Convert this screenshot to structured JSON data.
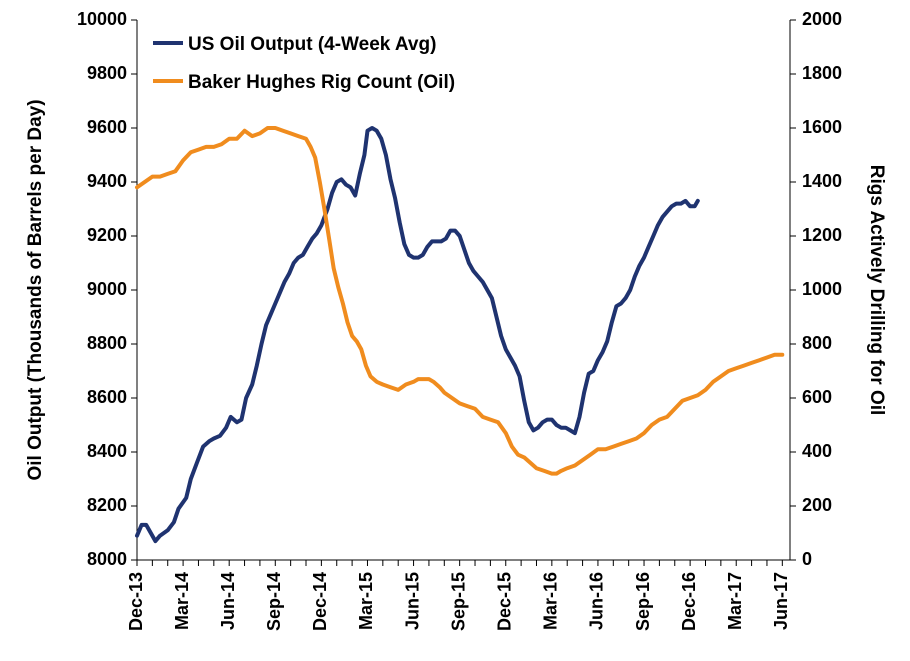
{
  "chart_data": {
    "type": "line",
    "title": "",
    "xlabel": "",
    "ylabel_left": "Oil Output (Thousands of Barrels per Day)",
    "ylabel_right": "Rigs Actively Drilling for Oil",
    "x_tick_labels": [
      "Dec-13",
      "Mar-14",
      "Jun-14",
      "Sep-14",
      "Dec-14",
      "Mar-15",
      "Jun-15",
      "Sep-15",
      "Dec-15",
      "Mar-16",
      "Jun-16",
      "Sep-16",
      "Dec-16",
      "Mar-17",
      "Jun-17"
    ],
    "x_range_months": [
      0,
      42.5
    ],
    "y_left": {
      "min": 8000,
      "max": 10000,
      "step": 200,
      "ticks": [
        8000,
        8200,
        8400,
        8600,
        8800,
        9000,
        9200,
        9400,
        9600,
        9800,
        10000
      ]
    },
    "y_right": {
      "min": 0,
      "max": 2000,
      "step": 200,
      "ticks": [
        0,
        200,
        400,
        600,
        800,
        1000,
        1200,
        1400,
        1600,
        1800,
        2000
      ]
    },
    "legend_position": "top-left",
    "grid": false,
    "series": [
      {
        "name": "US Oil Output (4-Week Avg)",
        "axis": "left",
        "color": "#1f3370",
        "points": [
          [
            0.0,
            8090
          ],
          [
            0.3,
            8130
          ],
          [
            0.6,
            8130
          ],
          [
            0.9,
            8100
          ],
          [
            1.2,
            8070
          ],
          [
            1.5,
            8090
          ],
          [
            2.0,
            8110
          ],
          [
            2.4,
            8140
          ],
          [
            2.7,
            8190
          ],
          [
            3.2,
            8230
          ],
          [
            3.5,
            8300
          ],
          [
            3.9,
            8360
          ],
          [
            4.3,
            8420
          ],
          [
            4.7,
            8440
          ],
          [
            5.0,
            8450
          ],
          [
            5.4,
            8460
          ],
          [
            5.8,
            8490
          ],
          [
            6.1,
            8530
          ],
          [
            6.5,
            8510
          ],
          [
            6.8,
            8520
          ],
          [
            7.1,
            8600
          ],
          [
            7.5,
            8650
          ],
          [
            7.8,
            8720
          ],
          [
            8.1,
            8800
          ],
          [
            8.4,
            8870
          ],
          [
            8.7,
            8910
          ],
          [
            9.0,
            8950
          ],
          [
            9.3,
            8990
          ],
          [
            9.6,
            9030
          ],
          [
            9.9,
            9060
          ],
          [
            10.2,
            9100
          ],
          [
            10.5,
            9120
          ],
          [
            10.8,
            9130
          ],
          [
            11.1,
            9160
          ],
          [
            11.4,
            9190
          ],
          [
            11.7,
            9210
          ],
          [
            12.0,
            9240
          ],
          [
            12.4,
            9300
          ],
          [
            12.7,
            9360
          ],
          [
            13.0,
            9400
          ],
          [
            13.3,
            9410
          ],
          [
            13.6,
            9390
          ],
          [
            13.9,
            9380
          ],
          [
            14.2,
            9350
          ],
          [
            14.5,
            9430
          ],
          [
            14.8,
            9500
          ],
          [
            15.0,
            9590
          ],
          [
            15.3,
            9600
          ],
          [
            15.6,
            9590
          ],
          [
            15.9,
            9560
          ],
          [
            16.2,
            9500
          ],
          [
            16.5,
            9410
          ],
          [
            16.8,
            9340
          ],
          [
            17.1,
            9250
          ],
          [
            17.4,
            9170
          ],
          [
            17.7,
            9130
          ],
          [
            18.0,
            9120
          ],
          [
            18.3,
            9120
          ],
          [
            18.6,
            9130
          ],
          [
            18.9,
            9160
          ],
          [
            19.2,
            9180
          ],
          [
            19.5,
            9180
          ],
          [
            19.8,
            9180
          ],
          [
            20.1,
            9190
          ],
          [
            20.4,
            9220
          ],
          [
            20.7,
            9220
          ],
          [
            21.0,
            9200
          ],
          [
            21.3,
            9150
          ],
          [
            21.6,
            9100
          ],
          [
            21.9,
            9070
          ],
          [
            22.2,
            9050
          ],
          [
            22.5,
            9030
          ],
          [
            22.8,
            9000
          ],
          [
            23.1,
            8970
          ],
          [
            23.4,
            8900
          ],
          [
            23.7,
            8830
          ],
          [
            24.0,
            8780
          ],
          [
            24.3,
            8750
          ],
          [
            24.6,
            8720
          ],
          [
            24.9,
            8680
          ],
          [
            25.2,
            8590
          ],
          [
            25.5,
            8510
          ],
          [
            25.8,
            8480
          ],
          [
            26.1,
            8490
          ],
          [
            26.4,
            8510
          ],
          [
            26.7,
            8520
          ],
          [
            27.0,
            8520
          ],
          [
            27.3,
            8500
          ],
          [
            27.6,
            8490
          ],
          [
            27.9,
            8490
          ],
          [
            28.2,
            8480
          ],
          [
            28.5,
            8470
          ],
          [
            28.8,
            8530
          ],
          [
            29.1,
            8620
          ],
          [
            29.4,
            8690
          ],
          [
            29.7,
            8700
          ],
          [
            30.0,
            8740
          ],
          [
            30.3,
            8770
          ],
          [
            30.6,
            8810
          ],
          [
            30.9,
            8880
          ],
          [
            31.2,
            8940
          ],
          [
            31.5,
            8950
          ],
          [
            31.8,
            8970
          ],
          [
            32.1,
            9000
          ],
          [
            32.4,
            9050
          ],
          [
            32.7,
            9090
          ],
          [
            33.0,
            9120
          ],
          [
            33.3,
            9160
          ],
          [
            33.6,
            9200
          ],
          [
            33.9,
            9240
          ],
          [
            34.2,
            9270
          ],
          [
            34.5,
            9290
          ],
          [
            34.8,
            9310
          ],
          [
            35.1,
            9320
          ],
          [
            35.4,
            9320
          ],
          [
            35.7,
            9330
          ],
          [
            36.0,
            9310
          ],
          [
            36.3,
            9310
          ],
          [
            36.5,
            9330
          ]
        ]
      },
      {
        "name": "Baker Hughes Rig Count (Oil)",
        "axis": "right",
        "color": "#f08c1e",
        "points": [
          [
            0.0,
            1380
          ],
          [
            0.5,
            1400
          ],
          [
            1.0,
            1420
          ],
          [
            1.5,
            1420
          ],
          [
            2.0,
            1430
          ],
          [
            2.5,
            1440
          ],
          [
            3.0,
            1480
          ],
          [
            3.5,
            1510
          ],
          [
            4.0,
            1520
          ],
          [
            4.5,
            1530
          ],
          [
            5.0,
            1530
          ],
          [
            5.5,
            1540
          ],
          [
            6.0,
            1560
          ],
          [
            6.5,
            1560
          ],
          [
            7.0,
            1590
          ],
          [
            7.5,
            1570
          ],
          [
            8.0,
            1580
          ],
          [
            8.5,
            1600
          ],
          [
            9.0,
            1600
          ],
          [
            9.5,
            1590
          ],
          [
            10.0,
            1580
          ],
          [
            10.5,
            1570
          ],
          [
            11.0,
            1560
          ],
          [
            11.3,
            1530
          ],
          [
            11.6,
            1490
          ],
          [
            11.9,
            1400
          ],
          [
            12.2,
            1300
          ],
          [
            12.5,
            1190
          ],
          [
            12.8,
            1080
          ],
          [
            13.1,
            1010
          ],
          [
            13.4,
            950
          ],
          [
            13.7,
            880
          ],
          [
            14.0,
            830
          ],
          [
            14.3,
            810
          ],
          [
            14.6,
            780
          ],
          [
            14.9,
            720
          ],
          [
            15.2,
            680
          ],
          [
            15.6,
            660
          ],
          [
            16.0,
            650
          ],
          [
            16.5,
            640
          ],
          [
            17.0,
            630
          ],
          [
            17.5,
            650
          ],
          [
            18.0,
            660
          ],
          [
            18.3,
            670
          ],
          [
            18.7,
            670
          ],
          [
            19.0,
            670
          ],
          [
            19.3,
            660
          ],
          [
            19.7,
            640
          ],
          [
            20.0,
            620
          ],
          [
            20.5,
            600
          ],
          [
            21.0,
            580
          ],
          [
            21.5,
            570
          ],
          [
            22.0,
            560
          ],
          [
            22.5,
            530
          ],
          [
            23.0,
            520
          ],
          [
            23.5,
            510
          ],
          [
            24.0,
            470
          ],
          [
            24.4,
            420
          ],
          [
            24.8,
            390
          ],
          [
            25.2,
            380
          ],
          [
            25.6,
            360
          ],
          [
            26.0,
            340
          ],
          [
            26.5,
            330
          ],
          [
            27.0,
            320
          ],
          [
            27.3,
            320
          ],
          [
            27.6,
            330
          ],
          [
            28.0,
            340
          ],
          [
            28.5,
            350
          ],
          [
            29.0,
            370
          ],
          [
            29.5,
            390
          ],
          [
            30.0,
            410
          ],
          [
            30.5,
            410
          ],
          [
            31.0,
            420
          ],
          [
            31.5,
            430
          ],
          [
            32.0,
            440
          ],
          [
            32.5,
            450
          ],
          [
            33.0,
            470
          ],
          [
            33.5,
            500
          ],
          [
            34.0,
            520
          ],
          [
            34.5,
            530
          ],
          [
            35.0,
            560
          ],
          [
            35.5,
            590
          ],
          [
            36.0,
            600
          ],
          [
            36.5,
            610
          ],
          [
            37.0,
            630
          ],
          [
            37.5,
            660
          ],
          [
            38.0,
            680
          ],
          [
            38.5,
            700
          ],
          [
            39.0,
            710
          ],
          [
            39.5,
            720
          ],
          [
            40.0,
            730
          ],
          [
            40.5,
            740
          ],
          [
            41.0,
            750
          ],
          [
            41.5,
            760
          ],
          [
            42.0,
            760
          ]
        ]
      }
    ]
  }
}
